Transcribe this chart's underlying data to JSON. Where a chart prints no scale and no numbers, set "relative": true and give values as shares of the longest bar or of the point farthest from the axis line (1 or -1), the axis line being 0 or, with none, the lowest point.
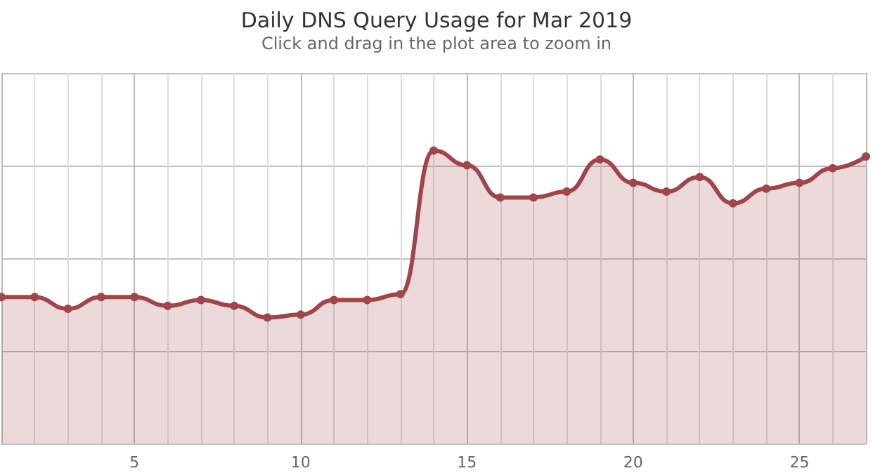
{
  "chart_data": {
    "type": "area",
    "title": "Daily DNS Query Usage for Mar 2019",
    "subtitle": "Click and drag in the plot area to zoom in",
    "x": [
      1,
      2,
      3,
      4,
      5,
      6,
      7,
      8,
      9,
      10,
      11,
      12,
      13,
      14,
      15,
      16,
      17,
      18,
      19,
      20,
      21,
      22,
      23,
      24,
      25,
      26,
      27
    ],
    "series": [
      {
        "color": "#a0454a",
        "values": [
          0.5,
          0.5,
          0.46,
          0.5,
          0.5,
          0.47,
          0.49,
          0.47,
          0.43,
          0.44,
          0.49,
          0.49,
          0.51,
          1.0,
          0.95,
          0.84,
          0.84,
          0.86,
          0.97,
          0.89,
          0.86,
          0.91,
          0.82,
          0.87,
          0.89,
          0.94,
          0.98
        ]
      }
    ],
    "relative": true,
    "xlim": [
      1,
      27
    ],
    "xticks": [
      5,
      10,
      15,
      20,
      25
    ],
    "grid": true,
    "marker": "circle",
    "line_style": "solid",
    "tick_labels": "x"
  }
}
